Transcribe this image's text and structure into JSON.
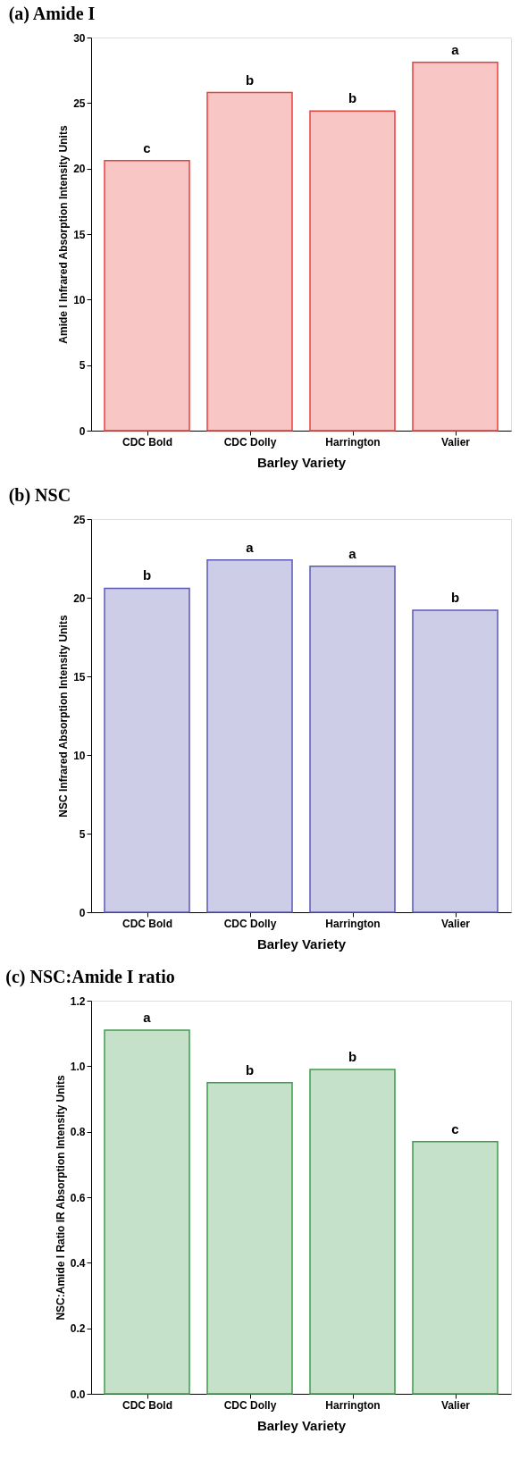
{
  "chart_data": [
    {
      "type": "bar",
      "title": "(a) Amide I",
      "xlabel": "Barley Variety",
      "ylabel": "Amide I Infrared Absorption Intensity Units",
      "categories": [
        "CDC Bold",
        "CDC Dolly",
        "Harrington",
        "Valier"
      ],
      "values": [
        20.6,
        25.8,
        24.4,
        28.1
      ],
      "color": "#e8413c",
      "ylim": [
        0,
        30
      ],
      "yticks": [
        0,
        5,
        10,
        15,
        20,
        25,
        30
      ],
      "grid": false,
      "annotations": [
        {
          "text": "c",
          "x": "CDC Bold",
          "y": 20.6
        },
        {
          "text": "b",
          "x": "CDC Dolly",
          "y": 25.8
        },
        {
          "text": "b",
          "x": "Harrington",
          "y": 24.4
        },
        {
          "text": "a",
          "x": "Valier",
          "y": 28.1
        }
      ]
    },
    {
      "type": "bar",
      "title": "(b) NSC",
      "xlabel": "Barley Variety",
      "ylabel": "NSC Infrared Absorption Intensity Units",
      "categories": [
        "CDC Bold",
        "CDC Dolly",
        "Harrington",
        "Valier"
      ],
      "values": [
        20.6,
        22.4,
        22.0,
        19.2
      ],
      "color": "#5a5ab4",
      "ylim": [
        0,
        25
      ],
      "yticks": [
        0,
        5,
        10,
        15,
        20,
        25
      ],
      "grid": false,
      "annotations": [
        {
          "text": "b",
          "x": "CDC Bold",
          "y": 20.6
        },
        {
          "text": "a",
          "x": "CDC Dolly",
          "y": 22.4
        },
        {
          "text": "a",
          "x": "Harrington",
          "y": 22.0
        },
        {
          "text": "b",
          "x": "Valier",
          "y": 19.2
        }
      ]
    },
    {
      "type": "bar",
      "title": "(c) NSC:Amide I ratio",
      "xlabel": "Barley Variety",
      "ylabel": "NSC:Amide I Ratio IR Absorption Intensity Units",
      "categories": [
        "CDC Bold",
        "CDC Dolly",
        "Harrington",
        "Valier"
      ],
      "values": [
        1.11,
        0.95,
        0.99,
        0.77
      ],
      "color": "#3f9a4c",
      "ylim": [
        0,
        1.2
      ],
      "yticks": [
        {
          "value": 0,
          "label": "0.0"
        },
        0.2,
        0.4,
        0.6,
        0.8,
        {
          "value": 1.0,
          "label": "1.0"
        },
        1.2
      ],
      "grid": false,
      "annotations": [
        {
          "text": "a",
          "x": "CDC Bold",
          "y": 1.11
        },
        {
          "text": "b",
          "x": "CDC Dolly",
          "y": 0.95
        },
        {
          "text": "b",
          "x": "Harrington",
          "y": 0.99
        },
        {
          "text": "c",
          "x": "Valier",
          "y": 0.77
        }
      ]
    }
  ]
}
